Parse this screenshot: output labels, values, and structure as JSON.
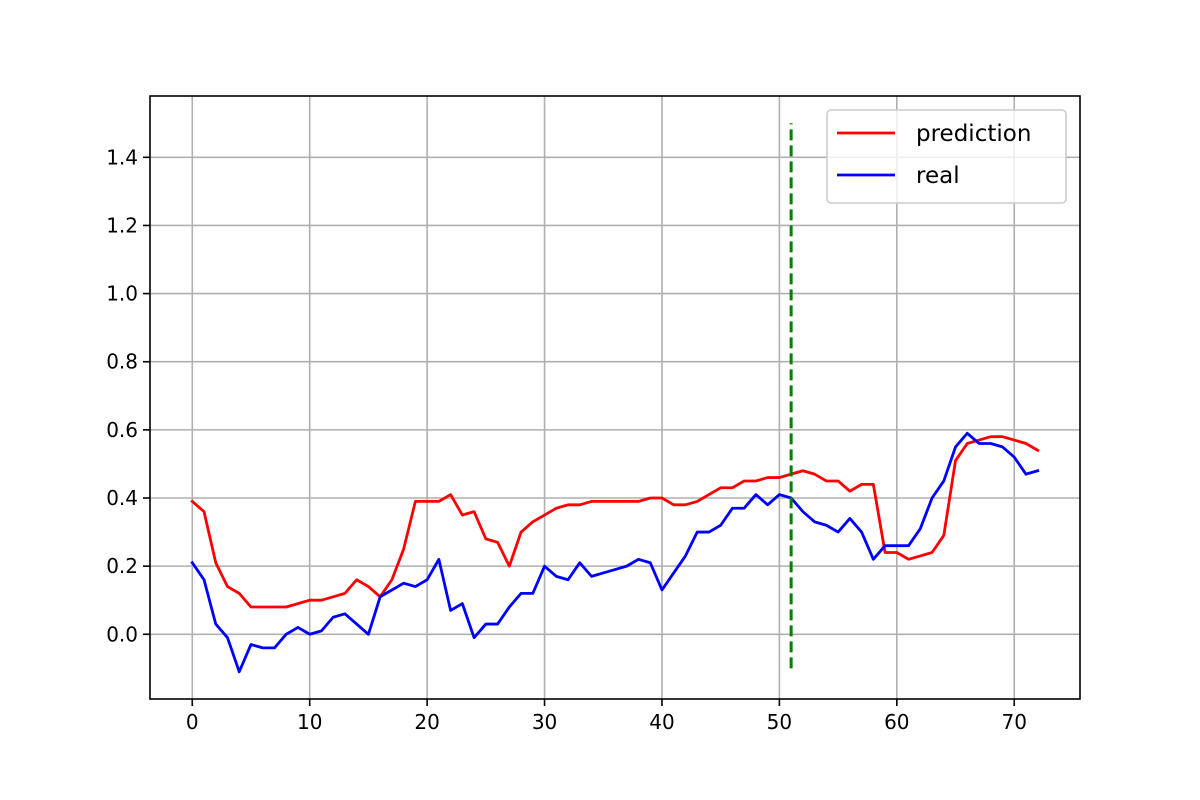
{
  "chart_data": {
    "type": "line",
    "title": "",
    "xlabel": "",
    "ylabel": "",
    "xlim": [
      -3.6,
      75.6
    ],
    "ylim": [
      -0.19,
      1.58
    ],
    "x_ticks": [
      0,
      10,
      20,
      30,
      40,
      50,
      60,
      70
    ],
    "x_tick_labels": [
      "0",
      "10",
      "20",
      "30",
      "40",
      "50",
      "60",
      "70"
    ],
    "y_ticks": [
      0.0,
      0.2,
      0.4,
      0.6,
      0.8,
      1.0,
      1.2,
      1.4
    ],
    "y_tick_labels": [
      "0.0",
      "0.2",
      "0.4",
      "0.6",
      "0.8",
      "1.0",
      "1.2",
      "1.4"
    ],
    "grid": true,
    "legend_position": "top-right",
    "series": [
      {
        "name": "prediction",
        "color": "#ff0000",
        "x": [
          0,
          1,
          2,
          3,
          4,
          5,
          6,
          7,
          8,
          9,
          10,
          11,
          12,
          13,
          14,
          15,
          16,
          17,
          18,
          19,
          20,
          21,
          22,
          23,
          24,
          25,
          26,
          27,
          28,
          29,
          30,
          31,
          32,
          33,
          34,
          35,
          36,
          37,
          38,
          39,
          40,
          41,
          42,
          43,
          44,
          45,
          46,
          47,
          48,
          49,
          50,
          51,
          52,
          53,
          54,
          55,
          56,
          57,
          58,
          59,
          60,
          61,
          62,
          63,
          64,
          65,
          66,
          67,
          68,
          69,
          70,
          71,
          72
        ],
        "values": [
          0.39,
          0.36,
          0.21,
          0.14,
          0.12,
          0.08,
          0.08,
          0.08,
          0.08,
          0.09,
          0.1,
          0.1,
          0.11,
          0.12,
          0.16,
          0.14,
          0.11,
          0.16,
          0.25,
          0.39,
          0.39,
          0.39,
          0.41,
          0.35,
          0.36,
          0.28,
          0.27,
          0.2,
          0.3,
          0.33,
          0.35,
          0.37,
          0.38,
          0.38,
          0.39,
          0.39,
          0.39,
          0.39,
          0.39,
          0.4,
          0.4,
          0.38,
          0.38,
          0.39,
          0.41,
          0.43,
          0.43,
          0.45,
          0.45,
          0.46,
          0.46,
          0.47,
          0.48,
          0.47,
          0.45,
          0.45,
          0.42,
          0.44,
          0.44,
          0.24,
          0.24,
          0.22,
          0.23,
          0.24,
          0.29,
          0.51,
          0.56,
          0.57,
          0.58,
          0.58,
          0.57,
          0.56,
          0.54
        ]
      },
      {
        "name": "real",
        "color": "#0000ff",
        "x": [
          0,
          1,
          2,
          3,
          4,
          5,
          6,
          7,
          8,
          9,
          10,
          11,
          12,
          13,
          14,
          15,
          16,
          17,
          18,
          19,
          20,
          21,
          22,
          23,
          24,
          25,
          26,
          27,
          28,
          29,
          30,
          31,
          32,
          33,
          34,
          35,
          36,
          37,
          38,
          39,
          40,
          41,
          42,
          43,
          44,
          45,
          46,
          47,
          48,
          49,
          50,
          51,
          52,
          53,
          54,
          55,
          56,
          57,
          58,
          59,
          60,
          61,
          62,
          63,
          64,
          65,
          66,
          67,
          68,
          69,
          70,
          71,
          72
        ],
        "values": [
          0.21,
          0.16,
          0.03,
          -0.01,
          -0.11,
          -0.03,
          -0.04,
          -0.04,
          0.0,
          0.02,
          0.0,
          0.01,
          0.05,
          0.06,
          0.03,
          0.0,
          0.11,
          0.13,
          0.15,
          0.14,
          0.16,
          0.22,
          0.07,
          0.09,
          -0.01,
          0.03,
          0.03,
          0.08,
          0.12,
          0.12,
          0.2,
          0.17,
          0.16,
          0.21,
          0.17,
          0.18,
          0.19,
          0.2,
          0.22,
          0.21,
          0.13,
          0.18,
          0.23,
          0.3,
          0.3,
          0.32,
          0.37,
          0.37,
          0.41,
          0.38,
          0.41,
          0.4,
          0.36,
          0.33,
          0.32,
          0.3,
          0.34,
          0.3,
          0.22,
          0.26,
          0.26,
          0.26,
          0.31,
          0.4,
          0.45,
          0.55,
          0.59,
          0.56,
          0.56,
          0.55,
          0.52,
          0.47,
          0.48
        ]
      }
    ],
    "vertical_line": {
      "x": 51,
      "y_start": -0.1,
      "y_end": 1.5,
      "color": "#008000",
      "style": "dashed"
    }
  }
}
